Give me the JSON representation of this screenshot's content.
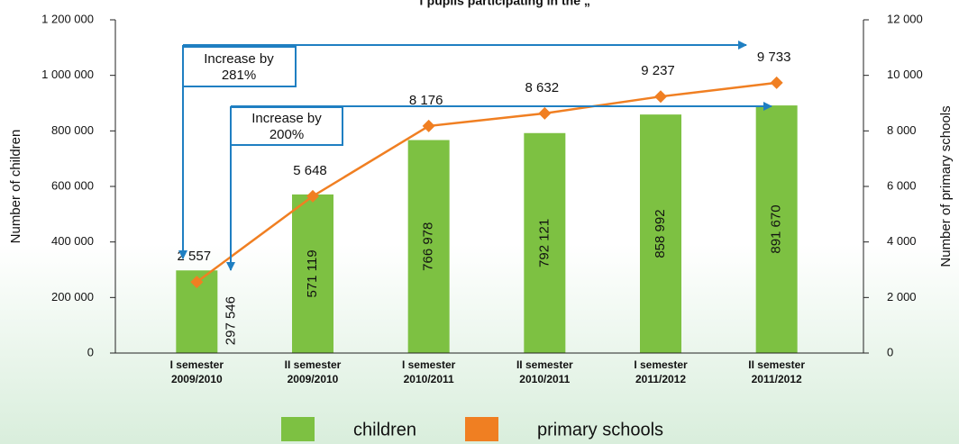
{
  "chart_data": {
    "type": "bar-line",
    "title": "f pupils participating in the „",
    "categories": [
      [
        "I semester",
        "2009/2010"
      ],
      [
        "II semester",
        "2009/2010"
      ],
      [
        "I semester",
        "2010/2011"
      ],
      [
        "II semester",
        "2010/2011"
      ],
      [
        "I semester",
        "2011/2012"
      ],
      [
        "II semester",
        "2011/2012"
      ]
    ],
    "series": [
      {
        "name": "children",
        "type": "bar",
        "color": "#7dc142",
        "values": [
          297546,
          571119,
          766978,
          792121,
          858992,
          891670
        ],
        "value_labels": [
          "297 546",
          "571 119",
          "766 978",
          "792 121",
          "858 992",
          "891 670"
        ]
      },
      {
        "name": "primary schools",
        "type": "line",
        "axis": "y2",
        "color": "#f07f22",
        "values": [
          2557,
          5648,
          8176,
          8632,
          9237,
          9733
        ],
        "value_labels": [
          "2 557",
          "5 648",
          "8 176",
          "8 632",
          "9 237",
          "9 733"
        ]
      }
    ],
    "ylabel": "Number of children",
    "y2label": "Number of primary schools",
    "ylim": [
      0,
      1200000
    ],
    "yticks": [
      0,
      {
        "value": 200000,
        "label": "200 000"
      },
      {
        "value": 400000,
        "label": "400 000"
      },
      {
        "value": 600000,
        "label": "600 000"
      },
      {
        "value": 800000,
        "label": "800 000"
      },
      {
        "value": 1000000,
        "label": "1 000 000"
      },
      {
        "value": 1200000,
        "label": "1 200 000"
      }
    ],
    "y2lim": [
      0,
      12000
    ],
    "y2ticks": [
      0,
      {
        "value": 2000,
        "label": "2 000"
      },
      {
        "value": 4000,
        "label": "4 000"
      },
      {
        "value": 6000,
        "label": "6 000"
      },
      {
        "value": 8000,
        "label": "8 000"
      },
      {
        "value": 10000,
        "label": "10 000"
      },
      {
        "value": 12000,
        "label": "12 000"
      }
    ],
    "annotations": [
      [
        "Increase by",
        "281%"
      ],
      [
        "Increase by",
        "200%"
      ]
    ],
    "legend": "bottom"
  }
}
